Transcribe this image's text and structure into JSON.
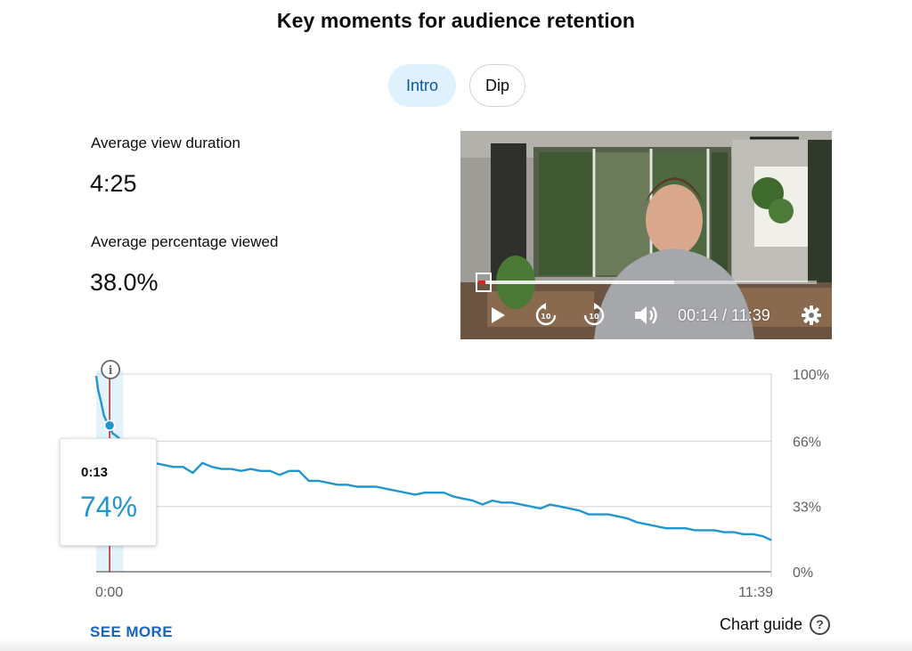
{
  "header": {
    "title": "Key moments for audience retention"
  },
  "tabs": [
    {
      "label": "Intro",
      "selected": true
    },
    {
      "label": "Dip",
      "selected": false
    }
  ],
  "stats": {
    "avg_view_duration_label": "Average view duration",
    "avg_view_duration_value": "4:25",
    "avg_pct_viewed_label": "Average percentage viewed",
    "avg_pct_viewed_value": "38.0%"
  },
  "video": {
    "time_display": "00:14 / 11:39",
    "progress": 0.02,
    "icons": [
      "play-icon",
      "rewind-10-icon",
      "forward-10-icon",
      "volume-icon",
      "settings-icon"
    ]
  },
  "tooltip": {
    "time": "0:13",
    "value": "74%"
  },
  "chart_data": {
    "type": "line",
    "x_labels": [
      "0:00",
      "11:39"
    ],
    "y_tick_labels": [
      "100%",
      "66%",
      "33%",
      "0%"
    ],
    "ylim": [
      0,
      100
    ],
    "xlim_seconds": [
      0,
      699
    ],
    "highlight_range_seconds": [
      0,
      28
    ],
    "marker": {
      "x_seconds": 13,
      "y": 74
    },
    "series": [
      {
        "color": "#2196cd",
        "x_seconds": [
          0,
          2,
          5,
          8,
          10,
          13,
          17,
          20,
          25,
          30,
          40,
          50,
          60,
          70,
          80,
          90,
          100,
          110,
          120,
          130,
          140,
          150,
          160,
          170,
          180,
          190,
          200,
          210,
          220,
          230,
          240,
          250,
          260,
          270,
          280,
          290,
          300,
          310,
          320,
          330,
          340,
          350,
          360,
          370,
          380,
          390,
          400,
          410,
          420,
          430,
          440,
          450,
          460,
          470,
          480,
          490,
          500,
          510,
          520,
          530,
          540,
          550,
          560,
          570,
          580,
          590,
          600,
          610,
          620,
          630,
          640,
          650,
          660,
          670,
          680,
          690,
          699
        ],
        "values": [
          99,
          92,
          86,
          79,
          77,
          74,
          70,
          69,
          67,
          64,
          56,
          55,
          55,
          54,
          53,
          53,
          50,
          55,
          53,
          52,
          52,
          51,
          52,
          51,
          51,
          49,
          51,
          51,
          46,
          46,
          45,
          44,
          44,
          43,
          43,
          43,
          42,
          41,
          40,
          39,
          40,
          40,
          40,
          38,
          37,
          36,
          34,
          36,
          35,
          35,
          34,
          33,
          32,
          34,
          33,
          32,
          31,
          29,
          29,
          29,
          28,
          27,
          25,
          24,
          23,
          22,
          22,
          22,
          21,
          21,
          21,
          20,
          20,
          19,
          19,
          18,
          16
        ]
      }
    ],
    "grid": true
  },
  "footer": {
    "see_more": "SEE MORE",
    "chart_guide": "Chart guide"
  }
}
